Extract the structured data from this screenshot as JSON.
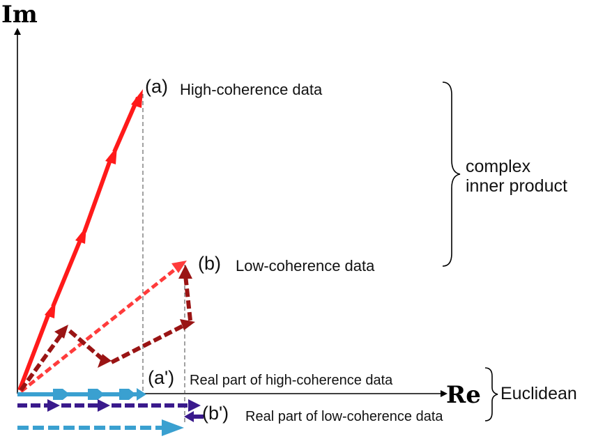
{
  "axes": {
    "y_label": "Im",
    "x_label": "Re"
  },
  "labels": {
    "a": "(a)",
    "a_text": "High-coherence data",
    "b": "(b)",
    "b_text": "Low-coherence data",
    "a_prime": "(a')",
    "a_prime_text": "Real part of high-coherence data",
    "b_prime": "(b')",
    "b_prime_text": "Real part of low-coherence data"
  },
  "brace_labels": {
    "complex_line1": "complex",
    "complex_line2": "inner product",
    "euclidean": "Euclidean"
  },
  "colors": {
    "axis": "#000000",
    "high_coherence": "#ff1a1a",
    "low_resultant": "#ff3b3b",
    "low_components": "#9a1414",
    "real_high": "#3aa0d0",
    "real_low_components": "#3a1a8c",
    "real_low_resultant": "#3aa0d0",
    "guide": "#444444"
  }
}
